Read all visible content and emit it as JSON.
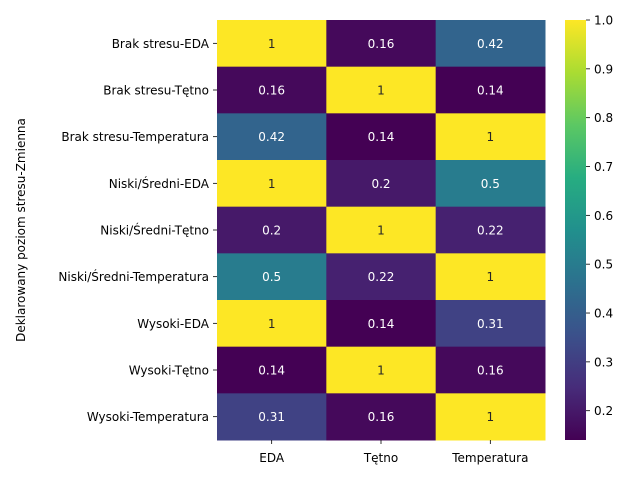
{
  "chart_data": {
    "type": "heatmap",
    "title": "",
    "xlabel": "",
    "ylabel": "Deklarowany poziom stresu-Zmienna",
    "columns": [
      "EDA",
      "Tętno",
      "Temperatura"
    ],
    "rows": [
      "Brak stresu-EDA",
      "Brak stresu-Tętno",
      "Brak stresu-Temperatura",
      "Niski/Średni-EDA",
      "Niski/Średni-Tętno",
      "Niski/Średni-Temperatura",
      "Wysoki-EDA",
      "Wysoki-Tętno",
      "Wysoki-Temperatura"
    ],
    "values": [
      [
        1,
        0.16,
        0.42
      ],
      [
        0.16,
        1,
        0.14
      ],
      [
        0.42,
        0.14,
        1
      ],
      [
        1,
        0.2,
        0.5
      ],
      [
        0.2,
        1,
        0.22
      ],
      [
        0.5,
        0.22,
        1
      ],
      [
        1,
        0.14,
        0.31
      ],
      [
        0.14,
        1,
        0.16
      ],
      [
        0.31,
        0.16,
        1
      ]
    ],
    "value_labels": [
      [
        "1",
        "0.16",
        "0.42"
      ],
      [
        "0.16",
        "1",
        "0.14"
      ],
      [
        "0.42",
        "0.14",
        "1"
      ],
      [
        "1",
        "0.2",
        "0.5"
      ],
      [
        "0.2",
        "1",
        "0.22"
      ],
      [
        "0.5",
        "0.22",
        "1"
      ],
      [
        "1",
        "0.14",
        "0.31"
      ],
      [
        "0.14",
        "1",
        "0.16"
      ],
      [
        "0.31",
        "0.16",
        "1"
      ]
    ],
    "colormap": "viridis",
    "vmin": 0.14,
    "vmax": 1.0,
    "colorbar": {
      "ticks": [
        0.2,
        0.3,
        0.4,
        0.5,
        0.6,
        0.7,
        0.8,
        0.9,
        1.0
      ],
      "tick_labels": [
        "0.2",
        "0.3",
        "0.4",
        "0.5",
        "0.6",
        "0.7",
        "0.8",
        "0.9",
        "1.0"
      ],
      "placement": "right"
    },
    "grid": false
  }
}
